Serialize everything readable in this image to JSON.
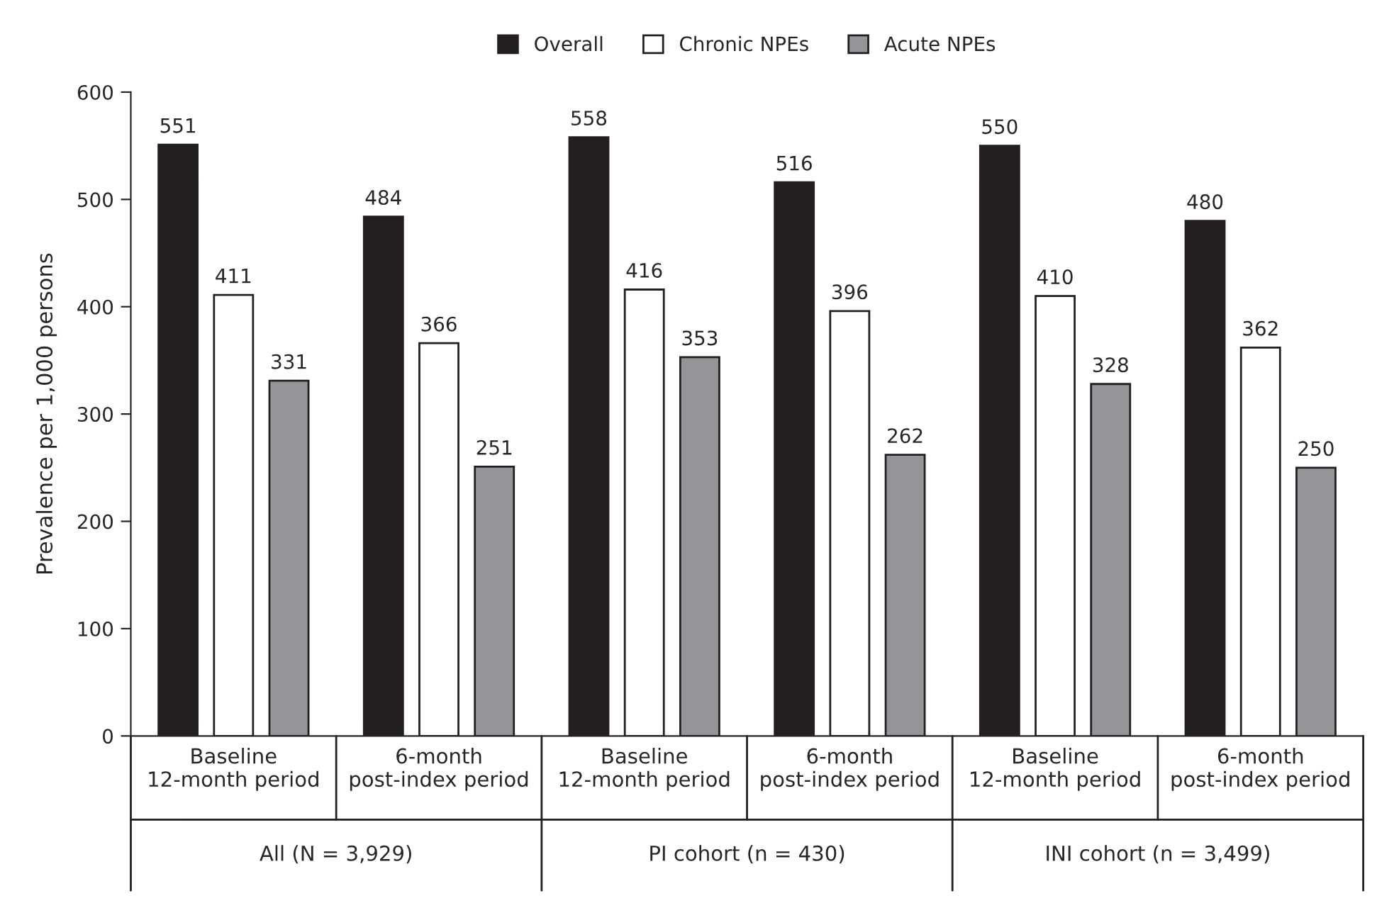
{
  "chart_data": {
    "type": "bar",
    "ylabel": "Prevalence per 1,000 persons",
    "categories": [
      "Baseline\n12-month period",
      "6-month\npost-index period",
      "Baseline\n12-month period",
      "6-month\npost-index period",
      "Baseline\n12-month period",
      "6-month\npost-index period"
    ],
    "series": [
      {
        "name": "Overall",
        "color": "#231f20",
        "values": [
          551,
          484,
          558,
          516,
          550,
          480
        ]
      },
      {
        "name": "Chronic NPEs",
        "color": "#ffffff",
        "values": [
          411,
          366,
          416,
          396,
          410,
          362
        ]
      },
      {
        "name": "Acute NPEs",
        "color": "#939598",
        "values": [
          331,
          251,
          353,
          262,
          328,
          250
        ]
      }
    ],
    "annotations": [
      "All (N = 3,929)",
      "PI cohort (n = 430)",
      "INI cohort (n = 3,499)"
    ],
    "ylim": [
      0,
      600
    ],
    "yticks": [
      0,
      100,
      200,
      300,
      400,
      500,
      600
    ],
    "data_labels": true,
    "legend": "top",
    "grid": false
  }
}
